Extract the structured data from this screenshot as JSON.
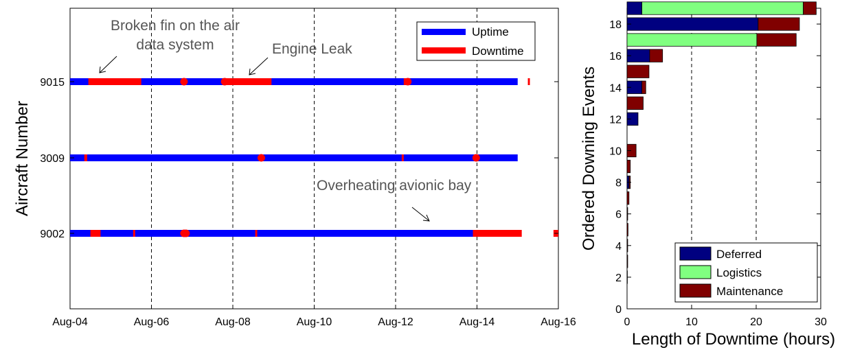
{
  "chart_data": [
    {
      "type": "timeline",
      "ylabel": "Aircraft Number",
      "x_ticks": [
        "Aug-04",
        "Aug-06",
        "Aug-08",
        "Aug-10",
        "Aug-12",
        "Aug-14",
        "Aug-16"
      ],
      "xlim_days": [
        0,
        12
      ],
      "grid": "vertical dashed",
      "legend": {
        "placement": "top-right",
        "entries": [
          {
            "label": "Uptime",
            "color": "#0000ff"
          },
          {
            "label": "Downtime",
            "color": "#ff0000"
          }
        ]
      },
      "colors": {
        "uptime": "#0000ff",
        "downtime": "#ff0000"
      },
      "aircraft": [
        {
          "label": "9015",
          "uptime_span": [
            "Aug-04",
            "Aug-15"
          ],
          "downtime_bars": [
            [
              0.45,
              1.75
            ],
            [
              3.75,
              4.95
            ],
            [
              8.2,
              8.25
            ],
            [
              11.25,
              11.3
            ]
          ],
          "downtime_points": [
            2.8,
            3.8,
            8.3
          ]
        },
        {
          "label": "3009",
          "uptime_span": [
            "Aug-04",
            "Aug-15"
          ],
          "downtime_bars": [
            [
              0.35,
              0.42
            ],
            [
              4.65,
              4.72
            ],
            [
              8.15,
              8.2
            ],
            [
              9.95,
              10.02
            ]
          ],
          "downtime_points": [
            4.7,
            9.98
          ]
        },
        {
          "label": "9002",
          "uptime_span": [
            "Aug-04",
            "Aug-15"
          ],
          "downtime_bars": [
            [
              0.5,
              0.75
            ],
            [
              1.55,
              1.6
            ],
            [
              4.55,
              4.6
            ],
            [
              9.9,
              11.1
            ],
            [
              11.88,
              12.0
            ]
          ],
          "downtime_points": [
            2.8,
            2.85
          ]
        }
      ],
      "annotations": [
        {
          "text": [
            "Broken fin on the air",
            "data system"
          ],
          "points_to_aircraft": "9015"
        },
        {
          "text": [
            "Engine Leak"
          ],
          "points_to_aircraft": "9015"
        },
        {
          "text": [
            "Overheating avionic bay"
          ],
          "points_to_aircraft": "9002"
        }
      ]
    },
    {
      "type": "stacked-horizontal-bar",
      "xlabel": "Length of Downtime (hours)",
      "ylabel": "Ordered Downing Events",
      "xlim": [
        0,
        30
      ],
      "ylim": [
        0,
        19
      ],
      "x_ticks": [
        "0",
        "10",
        "20",
        "30"
      ],
      "y_ticks": [
        "0",
        "2",
        "4",
        "6",
        "8",
        "10",
        "12",
        "14",
        "16",
        "18"
      ],
      "grid": "vertical dashed",
      "legend": {
        "placement": "bottom-right"
      },
      "series": [
        {
          "name": "Deferred",
          "color": "#000080",
          "values": [
            0,
            0,
            0,
            0,
            0,
            0,
            0,
            0.3,
            0,
            0,
            0,
            1.7,
            0,
            2.3,
            0,
            3.5,
            0,
            20.3,
            2.3
          ]
        },
        {
          "name": "Logistics",
          "color": "#80ff80",
          "values": [
            0,
            0,
            0,
            0,
            0,
            0,
            0,
            0,
            0,
            0,
            0,
            0,
            0,
            0,
            0,
            0,
            20.1,
            0,
            25.0
          ]
        },
        {
          "name": "Maintenance",
          "color": "#800000",
          "values": [
            0,
            0.05,
            0.1,
            0.1,
            0.15,
            0.1,
            0.3,
            0.2,
            0.5,
            1.4,
            0,
            0,
            2.5,
            0.6,
            3.4,
            2.0,
            6.1,
            6.4,
            2.0
          ]
        }
      ],
      "events": [
        1,
        2,
        3,
        4,
        5,
        6,
        7,
        8,
        9,
        10,
        11,
        12,
        13,
        14,
        15,
        16,
        17,
        18,
        19
      ]
    }
  ]
}
